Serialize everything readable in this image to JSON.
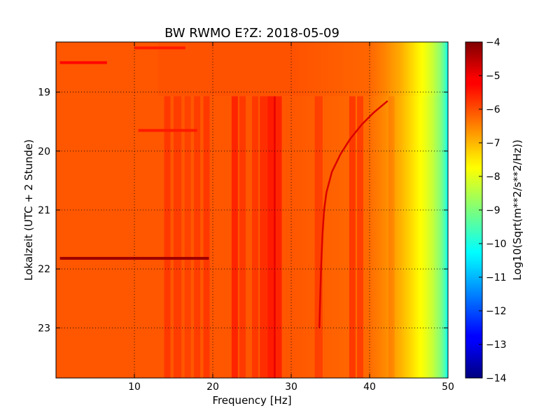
{
  "chart_data": {
    "type": "heatmap",
    "title": "BW RWMO E?Z: 2018-05-09",
    "xlabel": "Frequency [Hz]",
    "ylabel": "Lokalzeit (UTC + 2 Stunde)",
    "xlim": [
      0,
      50
    ],
    "ylim": [
      18.15,
      23.85
    ],
    "y_inverted": true,
    "x_ticks": [
      10,
      20,
      30,
      40,
      50
    ],
    "x_tick_labels": [
      "10",
      "20",
      "30",
      "40",
      "50"
    ],
    "y_ticks": [
      19,
      20,
      21,
      22,
      23
    ],
    "y_tick_labels": [
      "19",
      "20",
      "21",
      "22",
      "23"
    ],
    "grid": true,
    "colormap": "jet",
    "colorbar": {
      "label": "Log10(Sqrt(m**2/s**2/Hz))",
      "min": -14,
      "max": -4,
      "ticks": [
        -4,
        -5,
        -6,
        -7,
        -8,
        -9,
        -10,
        -11,
        -12,
        -13,
        -14
      ],
      "tick_labels": [
        "−4",
        "−5",
        "−6",
        "−7",
        "−8",
        "−9",
        "−10",
        "−11",
        "−12",
        "−13",
        "−14"
      ]
    },
    "base_level": -6.1,
    "level_points_by_frequency": [
      [
        0,
        -6.1
      ],
      [
        20,
        -6.1
      ],
      [
        30,
        -6.1
      ],
      [
        40,
        -6.3
      ],
      [
        42,
        -6.6
      ],
      [
        44,
        -7.0
      ],
      [
        45,
        -7.3
      ],
      [
        46,
        -7.6
      ],
      [
        47,
        -7.9
      ],
      [
        48,
        -8.3
      ],
      [
        49,
        -8.9
      ],
      [
        49.6,
        -9.5
      ],
      [
        50,
        -10.3
      ]
    ],
    "spectral_lines": [
      {
        "freq": 14.2,
        "delta": 0.3
      },
      {
        "freq": 15.5,
        "delta": 0.25
      },
      {
        "freq": 16.8,
        "delta": 0.2
      },
      {
        "freq": 18.0,
        "delta": 0.25
      },
      {
        "freq": 19.2,
        "delta": 0.3
      },
      {
        "freq": 22.8,
        "delta": 0.5
      },
      {
        "freq": 23.8,
        "delta": 0.3
      },
      {
        "freq": 25.4,
        "delta": 0.3
      },
      {
        "freq": 26.5,
        "delta": 0.4
      },
      {
        "freq": 27.5,
        "delta": 0.6
      },
      {
        "freq": 28.3,
        "delta": 0.5
      },
      {
        "freq": 33.5,
        "delta": 0.3
      },
      {
        "freq": 37.8,
        "delta": 0.45
      },
      {
        "freq": 38.8,
        "delta": 0.4
      },
      {
        "freq": 42.8,
        "delta": 0.2
      }
    ],
    "time_segment_change": 19.07,
    "horizontal_events": [
      {
        "time": 21.82,
        "f_start": 0.5,
        "f_end": 19.5,
        "level": -4.3
      },
      {
        "time": 18.5,
        "f_start": 0.5,
        "f_end": 6.5,
        "level": -5.3
      },
      {
        "time": 18.25,
        "f_start": 10,
        "f_end": 16.5,
        "level": -5.5
      },
      {
        "time": 19.65,
        "f_start": 10.5,
        "f_end": 18,
        "level": -5.5
      }
    ],
    "chirp_track": [
      [
        42.3,
        19.15
      ],
      [
        40.5,
        19.35
      ],
      [
        39.0,
        19.55
      ],
      [
        37.5,
        19.8
      ],
      [
        36.3,
        20.05
      ],
      [
        35.2,
        20.35
      ],
      [
        34.5,
        20.7
      ],
      [
        34.2,
        21.0
      ],
      [
        34.0,
        21.4
      ],
      [
        33.8,
        22.0
      ],
      [
        33.6,
        23.0
      ]
    ]
  }
}
